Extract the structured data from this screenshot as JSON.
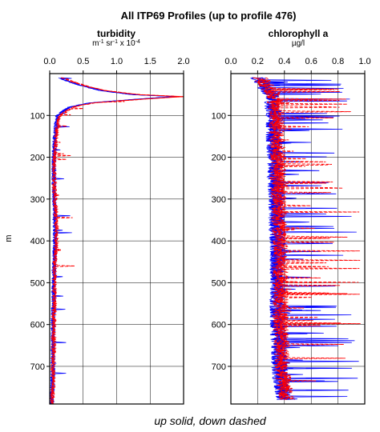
{
  "figure": {
    "title": "All ITP69 Profiles (up to profile 476)",
    "caption": "up solid, down dashed",
    "ylabel": "m"
  },
  "colors": {
    "up": "#0000ff",
    "down": "#ff0000",
    "axis": "#000000",
    "grid": "#000000"
  },
  "chart_data": [
    {
      "type": "line",
      "title": "turbidity",
      "xlabel": "m-1 sr-1 x 10-4",
      "xlim": [
        0.0,
        2.0
      ],
      "ylim": [
        0,
        790
      ],
      "y_inverted": true,
      "grid": true,
      "xticks": [
        "0.0",
        "0.5",
        "1.0",
        "1.5",
        "2.0"
      ],
      "yticks": [
        "100",
        "200",
        "300",
        "400",
        "500",
        "600",
        "700"
      ],
      "series": [
        {
          "line_style": "solid",
          "depth": [
            10,
            20,
            30,
            40,
            50,
            55,
            60,
            70,
            80,
            90,
            100,
            120,
            150,
            200,
            250,
            300,
            350,
            400,
            450,
            500,
            550,
            600,
            650,
            700,
            750,
            790
          ],
          "value": [
            0.15,
            0.3,
            0.5,
            0.75,
            1.2,
            1.9,
            1.4,
            0.6,
            0.3,
            0.2,
            0.12,
            0.1,
            0.08,
            0.06,
            0.06,
            0.07,
            0.08,
            0.08,
            0.07,
            0.06,
            0.06,
            0.05,
            0.05,
            0.05,
            0.04,
            0.03
          ]
        },
        {
          "line_style": "dashed",
          "depth": [
            10,
            20,
            30,
            40,
            50,
            55,
            60,
            70,
            80,
            90,
            100,
            120,
            150,
            200,
            250,
            300,
            350,
            400,
            450,
            500,
            550,
            600,
            650,
            700,
            750,
            790
          ],
          "value": [
            0.2,
            0.35,
            0.55,
            0.8,
            1.3,
            2.0,
            1.5,
            0.65,
            0.35,
            0.25,
            0.15,
            0.12,
            0.1,
            0.07,
            0.07,
            0.08,
            0.1,
            0.1,
            0.08,
            0.07,
            0.07,
            0.06,
            0.06,
            0.05,
            0.05,
            0.03
          ]
        }
      ]
    },
    {
      "type": "line",
      "title": "chlorophyll a",
      "xlabel": "µg/l",
      "xlim": [
        0.0,
        1.0
      ],
      "ylim": [
        0,
        790
      ],
      "y_inverted": true,
      "grid": true,
      "xticks": [
        "0.0",
        "0.2",
        "0.4",
        "0.6",
        "0.8",
        "1.0"
      ],
      "yticks": [
        "100",
        "200",
        "300",
        "400",
        "500",
        "600",
        "700"
      ],
      "series": [
        {
          "line_style": "solid",
          "depth": [
            10,
            30,
            50,
            100,
            150,
            200,
            250,
            300,
            350,
            400,
            450,
            500,
            550,
            600,
            650,
            700,
            750,
            780
          ],
          "value": [
            0.2,
            0.25,
            0.3,
            0.32,
            0.32,
            0.33,
            0.33,
            0.34,
            0.34,
            0.35,
            0.35,
            0.35,
            0.35,
            0.35,
            0.36,
            0.36,
            0.38,
            0.4
          ]
        },
        {
          "line_style": "dashed",
          "depth": [
            10,
            30,
            50,
            100,
            150,
            200,
            250,
            300,
            350,
            400,
            450,
            500,
            550,
            600,
            650,
            700,
            750,
            780
          ],
          "value": [
            0.22,
            0.27,
            0.32,
            0.34,
            0.34,
            0.35,
            0.35,
            0.36,
            0.36,
            0.37,
            0.37,
            0.37,
            0.37,
            0.37,
            0.38,
            0.38,
            0.4,
            0.42
          ]
        }
      ]
    }
  ]
}
